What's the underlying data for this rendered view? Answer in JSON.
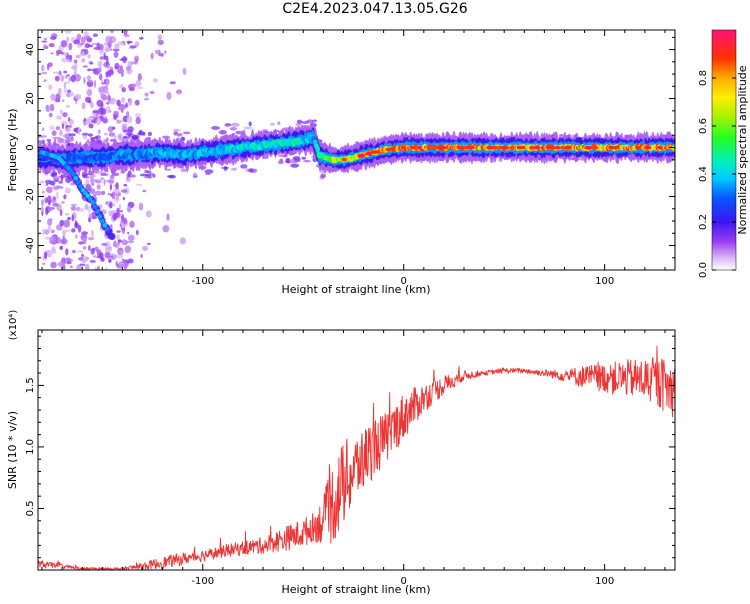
{
  "title": "C2E4.2023.047.13.05.G26",
  "colors": {
    "snr_line": "#ee3333",
    "axis": "#000000"
  },
  "chart_data": [
    {
      "type": "heatmap",
      "xlabel": "Height of straight line (km)",
      "ylabel": "Frequency (Hz)",
      "xlim": [
        -182,
        135
      ],
      "ylim": [
        -50,
        48
      ],
      "x_ticks": [
        -100,
        0,
        100
      ],
      "x_tick_labels": [
        "-100",
        "0",
        "100"
      ],
      "y_ticks": [
        -40,
        -20,
        0,
        20,
        40
      ],
      "y_tick_labels": [
        "-40",
        "-20",
        "0",
        "20",
        "40"
      ],
      "colorbar": {
        "label": "Normalized spectral amplitude",
        "range": [
          0,
          1
        ],
        "ticks": [
          0.0,
          0.2,
          0.4,
          0.6,
          0.8
        ],
        "tick_labels": [
          "0.0",
          "0.2",
          "0.4",
          "0.6",
          "0.8"
        ],
        "colormap": "rainbow (white-violet-blue-cyan-green-yellow-red-magenta)"
      },
      "ridge": {
        "x": [
          -182,
          -170,
          -160,
          -150,
          -140,
          -130,
          -120,
          -110,
          -100,
          -90,
          -80,
          -70,
          -60,
          -50,
          -45,
          -42,
          -40,
          -35,
          -30,
          -25,
          -20,
          -10,
          0,
          20,
          40,
          60,
          80,
          100,
          120,
          135
        ],
        "y": [
          -4,
          -5,
          -4,
          -4,
          -3,
          -3,
          -2,
          -3,
          -2,
          -1,
          0,
          1,
          2,
          3,
          4,
          -3,
          -4,
          -5,
          -5,
          -4,
          -3,
          -1,
          0,
          0,
          0,
          0,
          0,
          0,
          0,
          0
        ],
        "amplitude": [
          0.3,
          0.35,
          0.3,
          0.3,
          0.35,
          0.35,
          0.4,
          0.4,
          0.4,
          0.4,
          0.45,
          0.45,
          0.5,
          0.45,
          0.4,
          0.5,
          0.55,
          0.7,
          0.7,
          0.75,
          0.8,
          0.85,
          0.9,
          0.9,
          0.85,
          0.85,
          0.85,
          0.85,
          0.85,
          0.8
        ]
      },
      "descending_branch": {
        "x": [
          -180,
          -172,
          -165,
          -160,
          -155,
          -150,
          -145
        ],
        "y": [
          -2,
          -4,
          -10,
          -17,
          -22,
          -30,
          -37
        ]
      }
    },
    {
      "type": "line",
      "xlabel": "Height of straight line (km)",
      "ylabel": "SNR (10 * v/v)",
      "y_multiplier_label": "(x10⁴)",
      "xlim": [
        -182,
        135
      ],
      "ylim": [
        0,
        1.95
      ],
      "x_ticks": [
        -100,
        0,
        100
      ],
      "x_tick_labels": [
        "-100",
        "0",
        "100"
      ],
      "y_ticks": [
        0.5,
        1.0,
        1.5
      ],
      "y_tick_labels": [
        "0.5",
        "1.0",
        "1.5"
      ],
      "series": [
        {
          "envelope_x": [
            -182,
            -170,
            -160,
            -140,
            -130,
            -120,
            -100,
            -90,
            -80,
            -70,
            -60,
            -50,
            -45,
            -40,
            -35,
            -30,
            -25,
            -20,
            -15,
            -10,
            -5,
            0,
            10,
            20,
            30,
            40,
            50,
            60,
            70,
            80,
            90,
            100,
            110,
            120,
            130,
            135
          ],
          "envelope_y": [
            0.05,
            0.03,
            0.01,
            0.01,
            0.03,
            0.06,
            0.12,
            0.15,
            0.18,
            0.2,
            0.25,
            0.3,
            0.35,
            0.4,
            0.55,
            0.7,
            0.8,
            0.9,
            1.0,
            1.05,
            1.15,
            1.25,
            1.4,
            1.5,
            1.58,
            1.6,
            1.62,
            1.62,
            1.6,
            1.58,
            1.57,
            1.56,
            1.56,
            1.55,
            1.5,
            1.45
          ],
          "noise_amplitude": [
            0.03,
            0.02,
            0.01,
            0.01,
            0.03,
            0.05,
            0.05,
            0.05,
            0.06,
            0.07,
            0.1,
            0.12,
            0.12,
            0.2,
            0.35,
            0.35,
            0.3,
            0.25,
            0.25,
            0.22,
            0.2,
            0.2,
            0.12,
            0.08,
            0.04,
            0.02,
            0.02,
            0.02,
            0.03,
            0.05,
            0.1,
            0.12,
            0.15,
            0.18,
            0.22,
            0.25
          ]
        }
      ]
    }
  ]
}
